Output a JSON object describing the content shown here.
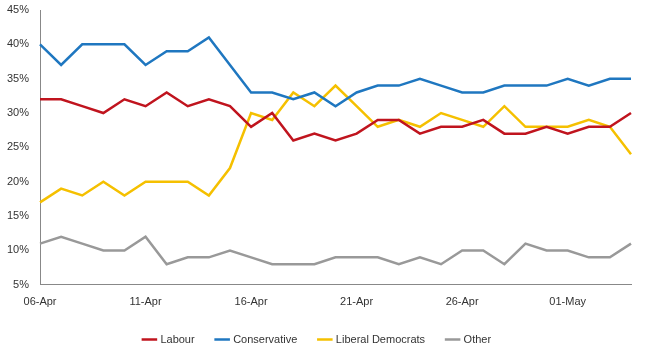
{
  "chart_data": {
    "type": "line",
    "categories": [
      "06-Apr",
      null,
      null,
      null,
      null,
      "11-Apr",
      null,
      null,
      null,
      null,
      "16-Apr",
      null,
      null,
      null,
      null,
      "21-Apr",
      null,
      null,
      null,
      null,
      "26-Apr",
      null,
      null,
      null,
      null,
      "01-May",
      null,
      null,
      null
    ],
    "series": [
      {
        "name": "Labour",
        "color": "#C0141E",
        "values": [
          32,
          32,
          31,
          30,
          32,
          31,
          33,
          31,
          32,
          31,
          28,
          30,
          26,
          27,
          26,
          27,
          29,
          29,
          27,
          28,
          28,
          29,
          27,
          27,
          28,
          27,
          28,
          28,
          30
        ]
      },
      {
        "name": "Conservative",
        "color": "#1F77C0",
        "values": [
          40,
          37,
          40,
          40,
          40,
          37,
          39,
          39,
          41,
          37,
          33,
          33,
          32,
          33,
          31,
          33,
          34,
          34,
          35,
          34,
          33,
          33,
          34,
          34,
          34,
          35,
          34,
          35,
          35
        ]
      },
      {
        "name": "Liberal Democrats",
        "color": "#F5C000",
        "values": [
          17,
          19,
          18,
          20,
          18,
          20,
          20,
          20,
          18,
          22,
          30,
          29,
          33,
          31,
          34,
          31,
          28,
          29,
          28,
          30,
          29,
          28,
          31,
          28,
          28,
          28,
          29,
          28,
          24
        ]
      },
      {
        "name": "Other",
        "color": "#999999",
        "values": [
          11,
          12,
          11,
          10,
          10,
          12,
          8,
          9,
          9,
          10,
          9,
          8,
          8,
          8,
          9,
          9,
          9,
          8,
          9,
          8,
          10,
          10,
          8,
          11,
          10,
          10,
          9,
          9,
          11
        ]
      }
    ],
    "ylim": [
      5,
      45
    ],
    "yticks": [
      {
        "value": 5,
        "label": "5%"
      },
      {
        "value": 10,
        "label": "10%"
      },
      {
        "value": 15,
        "label": "15%"
      },
      {
        "value": 20,
        "label": "20%"
      },
      {
        "value": 25,
        "label": "25%"
      },
      {
        "value": 30,
        "label": "30%"
      },
      {
        "value": 35,
        "label": "35%"
      },
      {
        "value": 40,
        "label": "40%"
      },
      {
        "value": 45,
        "label": "45%"
      }
    ],
    "grid": false,
    "legend": "bottom"
  }
}
